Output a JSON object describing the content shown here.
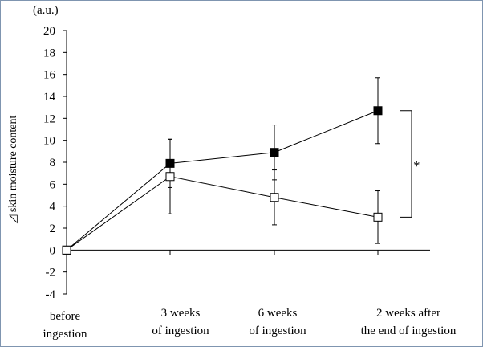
{
  "chart_data": {
    "type": "line",
    "unit": "(a.u.)",
    "ylabel": "skin moisture content",
    "ylabel_symbol": "◿",
    "ylim": [
      -4,
      20
    ],
    "yticks": [
      -4,
      -2,
      0,
      2,
      4,
      6,
      8,
      10,
      12,
      14,
      16,
      18,
      20
    ],
    "categories": [
      [
        "before",
        "ingestion"
      ],
      [
        "3 weeks",
        "of ingestion"
      ],
      [
        "6 weeks",
        "of ingestion"
      ],
      [
        "2 weeks after",
        "the end of ingestion"
      ]
    ],
    "series": [
      {
        "marker": "filled-square",
        "color": "#000000",
        "values": [
          0,
          7.9,
          8.9,
          12.7
        ],
        "error": [
          0,
          2.2,
          2.5,
          3.0
        ]
      },
      {
        "marker": "open-square",
        "color": "#000000",
        "values": [
          0,
          6.7,
          4.8,
          3.0
        ],
        "error": [
          0,
          3.4,
          2.5,
          2.4
        ]
      }
    ],
    "significance": {
      "label": "*",
      "between": "last-category"
    },
    "grid": false,
    "legend": "none"
  }
}
